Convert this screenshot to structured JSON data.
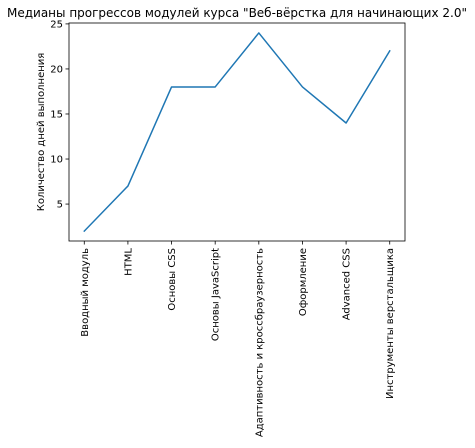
{
  "chart_data": {
    "type": "line",
    "title": "Медианы прогрессов модулей курса \"Веб-вёрстка для начинающих 2.0\"",
    "xlabel": "",
    "ylabel": "Количество дней выполнения",
    "categories": [
      "Вводный модуль",
      "HTML",
      "Основы CSS",
      "Основы JavaScript",
      "Адаптивность и кроссбраузерность",
      "Оформление",
      "Advanced CSS",
      "Инструменты верстальщика"
    ],
    "series": [
      {
        "values": [
          2,
          7,
          18,
          18,
          24,
          18,
          14,
          22
        ]
      }
    ],
    "ylim": [
      0.9,
      25.1
    ],
    "yticks": [
      5,
      10,
      15,
      20,
      25
    ],
    "grid": false,
    "line_color": "#1f77b4"
  }
}
